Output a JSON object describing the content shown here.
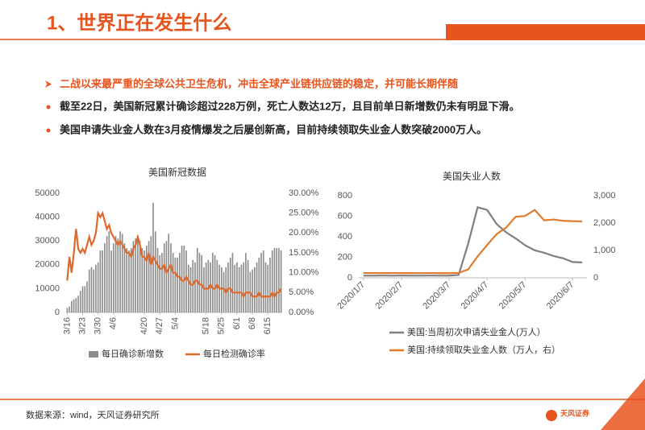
{
  "header": {
    "title": "1、世界正在发生什么"
  },
  "bullets": [
    {
      "text": "二战以来最严重的全球公共卫生危机，冲击全球产业链供应链的稳定，并可能长期伴随"
    },
    {
      "text": "截至22日，美国新冠累计确诊超过228万例，死亡人数达12万，且目前单日新增数仍未有明显下滑。"
    },
    {
      "text": "美国申请失业金人数在3月疫情爆发之后屡创新高，目前持续领取失业金人数突破2000万人。"
    }
  ],
  "footer": {
    "source": "数据来源：wind，天风证券研究所",
    "logo": "天风证券"
  },
  "chart_data": [
    {
      "type": "bar",
      "title": "美国新冠数据",
      "categories": [
        "3/16",
        null,
        null,
        null,
        null,
        null,
        null,
        "3/23",
        null,
        null,
        null,
        null,
        null,
        null,
        "3/30",
        null,
        null,
        null,
        null,
        null,
        null,
        "4/6",
        null,
        null,
        null,
        null,
        null,
        null,
        null,
        null,
        null,
        null,
        null,
        null,
        null,
        "4/20",
        null,
        null,
        null,
        null,
        null,
        null,
        "4/27",
        null,
        null,
        null,
        null,
        null,
        null,
        "5/4",
        null,
        null,
        null,
        null,
        null,
        null,
        null,
        null,
        null,
        null,
        null,
        null,
        null,
        "5/18",
        null,
        null,
        null,
        null,
        null,
        null,
        "5/25",
        null,
        null,
        null,
        null,
        null,
        null,
        "6/1",
        null,
        null,
        null,
        null,
        null,
        null,
        "6/8",
        null,
        null,
        null,
        null,
        null,
        null,
        "6/15",
        null,
        null,
        null,
        null,
        null,
        null
      ],
      "series": [
        {
          "name": "每日确诊新增数",
          "kind": "bar",
          "color": "#8c8c8c",
          "values": [
            1800,
            2500,
            4800,
            5500,
            6000,
            7000,
            9000,
            11000,
            11000,
            13000,
            18000,
            19000,
            18000,
            20000,
            21000,
            26000,
            26000,
            29000,
            32000,
            34000,
            26000,
            29000,
            32000,
            31000,
            34000,
            33000,
            29000,
            27000,
            26000,
            27000,
            30000,
            31000,
            31000,
            30000,
            27000,
            26000,
            28000,
            30000,
            32000,
            46000,
            34000,
            27000,
            24000,
            25000,
            29000,
            30000,
            33000,
            29000,
            25000,
            23000,
            23000,
            25000,
            28000,
            28000,
            26000,
            20000,
            19000,
            22000,
            21000,
            27000,
            25000,
            24000,
            19000,
            21000,
            22000,
            21000,
            25000,
            24000,
            22000,
            20000,
            19000,
            17000,
            19000,
            21000,
            23000,
            25000,
            20000,
            21000,
            19000,
            20000,
            21000,
            25000,
            22000,
            17000,
            18000,
            19000,
            21000,
            23000,
            25000,
            26000,
            21000,
            20000,
            23000,
            26000,
            27000,
            27000,
            27000,
            26000
          ]
        },
        {
          "name": "每日检测确诊率",
          "kind": "line",
          "axis": "y2",
          "color": "#e0682a",
          "values": [
            8,
            14,
            10,
            15,
            21,
            16,
            15,
            16,
            15,
            17,
            19,
            17,
            18,
            20,
            25,
            24,
            25,
            23,
            21,
            22,
            20,
            19,
            18,
            17,
            18,
            17,
            16,
            15,
            15,
            14,
            16,
            17,
            19,
            17,
            14,
            14,
            13,
            15,
            12,
            14,
            13,
            12,
            11,
            11,
            12,
            10,
            11,
            12,
            10,
            10,
            9,
            9,
            8,
            8,
            9,
            8,
            7,
            7,
            8,
            8,
            7,
            7,
            6,
            6,
            6,
            7,
            6,
            6,
            7,
            6,
            6,
            6,
            5,
            6,
            6,
            5,
            5,
            5,
            5,
            5,
            4,
            5,
            5,
            5,
            4,
            4,
            4,
            5,
            4,
            4,
            4,
            4,
            4,
            5,
            4,
            5,
            5,
            6
          ]
        }
      ],
      "ylim": [
        0,
        50000
      ],
      "yticks": [
        0,
        10000,
        20000,
        30000,
        40000,
        50000
      ],
      "y2lim": [
        0,
        30
      ],
      "y2ticks": [
        {
          "value": 0,
          "label": "0.00%"
        },
        {
          "value": 5,
          "label": "5.00%"
        },
        {
          "value": 10,
          "label": "10.00%"
        },
        {
          "value": 15,
          "label": "15.00%"
        },
        {
          "value": 20,
          "label": "20.00%"
        },
        {
          "value": 25,
          "label": "25.00%"
        },
        {
          "value": 30,
          "label": "30.00%"
        }
      ],
      "grid": false,
      "legend": "bottom"
    },
    {
      "type": "line",
      "title": "美国失业人数",
      "categories": [
        "2020/1/7",
        null,
        null,
        null,
        "2020/2/7",
        null,
        null,
        null,
        null,
        "2020/3/7",
        null,
        null,
        null,
        "2020/4/7",
        null,
        null,
        null,
        "2020/5/7",
        null,
        null,
        null,
        null,
        "2020/6/7",
        null
      ],
      "series": [
        {
          "name": "美国:当周初次申请失业金人(万人）",
          "color": "#7f7f7f",
          "values": [
            21,
            21,
            22,
            21,
            22,
            21,
            21,
            22,
            21,
            21,
            28,
            330,
            687,
            661,
            524,
            443,
            384,
            317,
            268,
            244,
            212,
            190,
            154,
            150
          ]
        },
        {
          "name": "美国:持续领取失业金人数（万人，右）",
          "axis": "y2",
          "color": "#e07b2d",
          "values": [
            175,
            175,
            173,
            175,
            172,
            173,
            171,
            174,
            170,
            170,
            178,
            305,
            780,
            1197,
            1598,
            1836,
            2230,
            2260,
            2480,
            2100,
            2130,
            2080,
            2070,
            2060
          ]
        }
      ],
      "ylim": [
        0,
        800
      ],
      "yticks": [
        0,
        200,
        400,
        600,
        800
      ],
      "y2lim": [
        0,
        3000
      ],
      "y2ticks": [
        0,
        {
          "value": 1000,
          "label": "1,000"
        },
        {
          "value": 2000,
          "label": "2,000"
        },
        {
          "value": 3000,
          "label": "3,000"
        }
      ],
      "grid": false,
      "legend": "bottom"
    }
  ]
}
